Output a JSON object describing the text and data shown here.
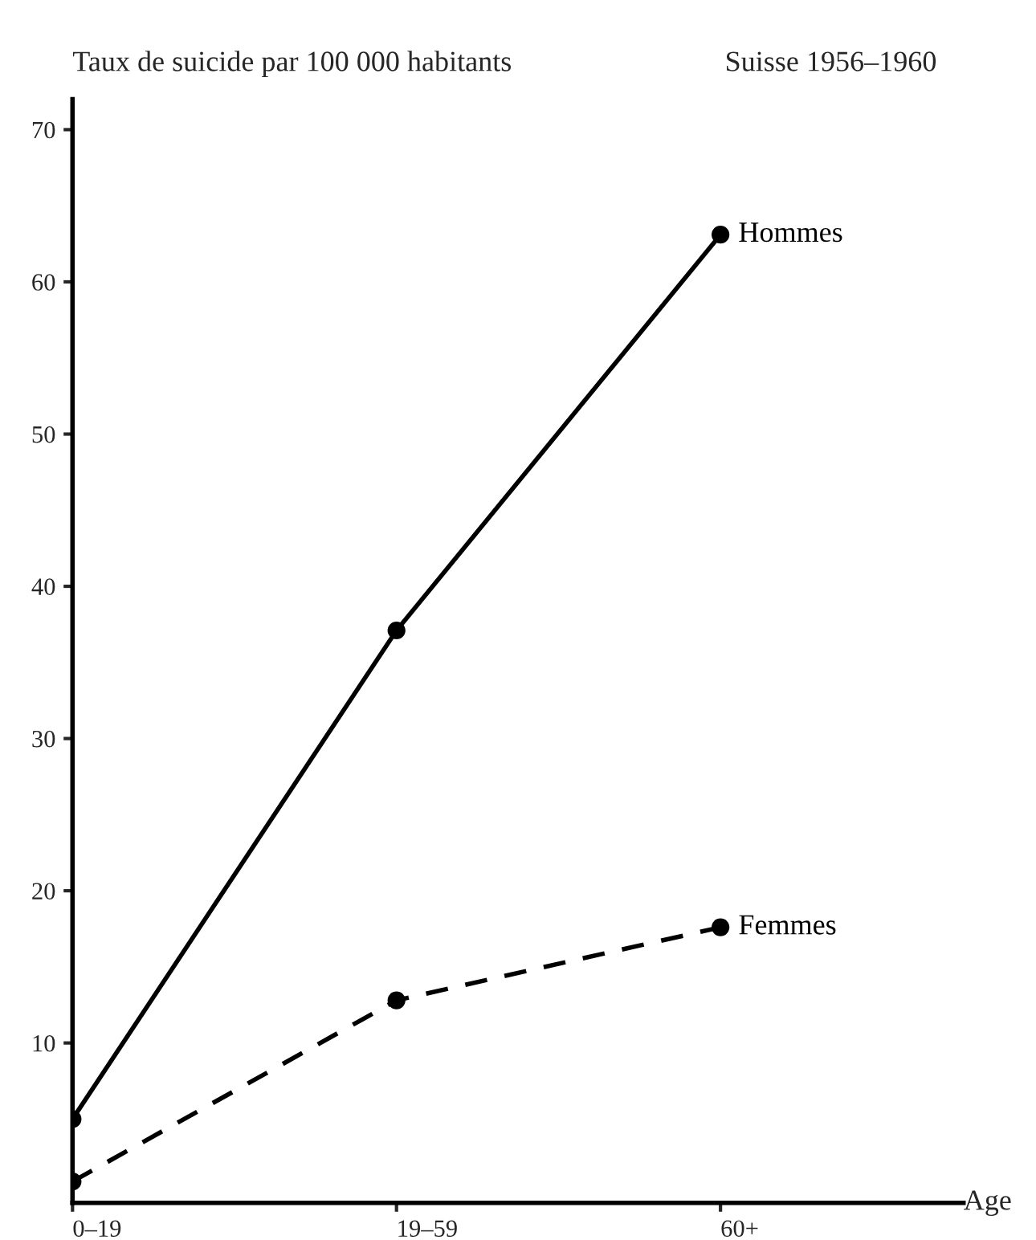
{
  "chart_data": {
    "type": "line",
    "title": "Suisse 1956–1960",
    "ylabel": "Taux de suicide par 100 000 habitants",
    "xlabel": "Age",
    "categories": [
      "0–19",
      "19–59",
      "60+"
    ],
    "series": [
      {
        "name": "Hommes",
        "color": "#000000",
        "values": [
          5.0,
          37.1,
          63.1
        ],
        "line_style": "solid"
      },
      {
        "name": "Femmes",
        "color": "#000000",
        "values": [
          0.9,
          12.8,
          17.6
        ],
        "line_style": "dashed"
      }
    ],
    "ylim": [
      -0.5,
      72
    ],
    "yticks": [
      10,
      20,
      30,
      40,
      50,
      60,
      70
    ],
    "marker": "circle",
    "grid": false,
    "legend": false
  }
}
